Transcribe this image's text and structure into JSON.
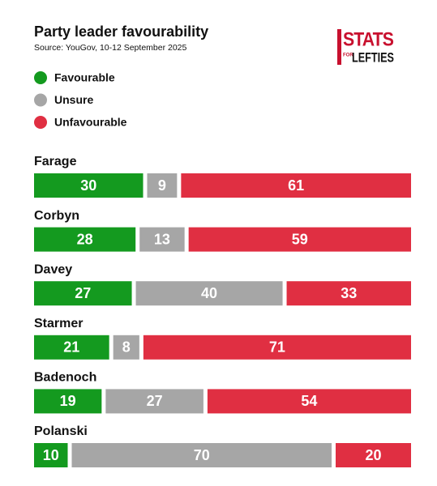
{
  "chart_data": {
    "type": "bar",
    "orientation": "horizontal",
    "stacked": true,
    "title": "Party leader favourability",
    "subtitle": "Source: YouGov, 10-12 September 2025",
    "logo": {
      "top": "STATS",
      "small": "FOR",
      "bottom": "LEFTIES"
    },
    "categories": [
      "Farage",
      "Corbyn",
      "Davey",
      "Starmer",
      "Badenoch",
      "Polanski"
    ],
    "series": [
      {
        "name": "Favourable",
        "color": "#149a1f",
        "values": [
          30,
          28,
          27,
          21,
          19,
          10
        ]
      },
      {
        "name": "Unsure",
        "color": "#a6a6a6",
        "values": [
          9,
          13,
          40,
          8,
          27,
          70
        ]
      },
      {
        "name": "Unfavourable",
        "color": "#e02f42",
        "values": [
          61,
          59,
          33,
          71,
          54,
          20
        ]
      }
    ],
    "xlim": [
      0,
      100
    ]
  }
}
